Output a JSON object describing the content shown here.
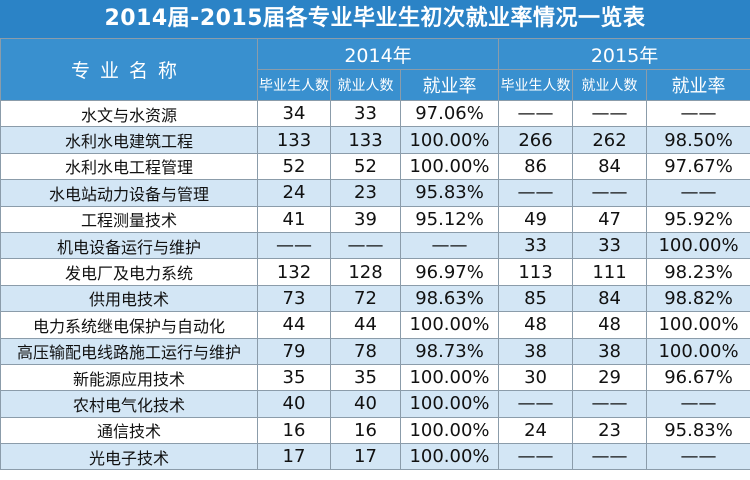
{
  "title": "2014届-2015届各专业毕业生初次就业率情况一览表",
  "header": {
    "major": "专业名称",
    "years": [
      "2014年",
      "2015年"
    ],
    "sub": [
      "毕业生人数",
      "就业人数",
      "就业率"
    ]
  },
  "rows": [
    {
      "major": "水文与水资源",
      "c": [
        "34",
        "33",
        "97.06%",
        "——",
        "——",
        "——"
      ]
    },
    {
      "major": "水利水电建筑工程",
      "c": [
        "133",
        "133",
        "100.00%",
        "266",
        "262",
        "98.50%"
      ]
    },
    {
      "major": "水利水电工程管理",
      "c": [
        "52",
        "52",
        "100.00%",
        "86",
        "84",
        "97.67%"
      ]
    },
    {
      "major": "水电站动力设备与管理",
      "c": [
        "24",
        "23",
        "95.83%",
        "——",
        "——",
        "——"
      ]
    },
    {
      "major": "工程测量技术",
      "c": [
        "41",
        "39",
        "95.12%",
        "49",
        "47",
        "95.92%"
      ]
    },
    {
      "major": "机电设备运行与维护",
      "c": [
        "——",
        "——",
        "——",
        "33",
        "33",
        "100.00%"
      ]
    },
    {
      "major": "发电厂及电力系统",
      "c": [
        "132",
        "128",
        "96.97%",
        "113",
        "111",
        "98.23%"
      ]
    },
    {
      "major": "供用电技术",
      "c": [
        "73",
        "72",
        "98.63%",
        "85",
        "84",
        "98.82%"
      ]
    },
    {
      "major": "电力系统继电保护与自动化",
      "c": [
        "44",
        "44",
        "100.00%",
        "48",
        "48",
        "100.00%"
      ]
    },
    {
      "major": "高压输配电线路施工运行与维护",
      "c": [
        "79",
        "78",
        "98.73%",
        "38",
        "38",
        "100.00%"
      ]
    },
    {
      "major": "新能源应用技术",
      "c": [
        "35",
        "35",
        "100.00%",
        "30",
        "29",
        "96.67%"
      ]
    },
    {
      "major": "农村电气化技术",
      "c": [
        "40",
        "40",
        "100.00%",
        "——",
        "——",
        "——"
      ]
    },
    {
      "major": "通信技术",
      "c": [
        "16",
        "16",
        "100.00%",
        "24",
        "23",
        "95.83%"
      ]
    },
    {
      "major": "光电子技术",
      "c": [
        "17",
        "17",
        "100.00%",
        "——",
        "——",
        "——"
      ]
    }
  ]
}
